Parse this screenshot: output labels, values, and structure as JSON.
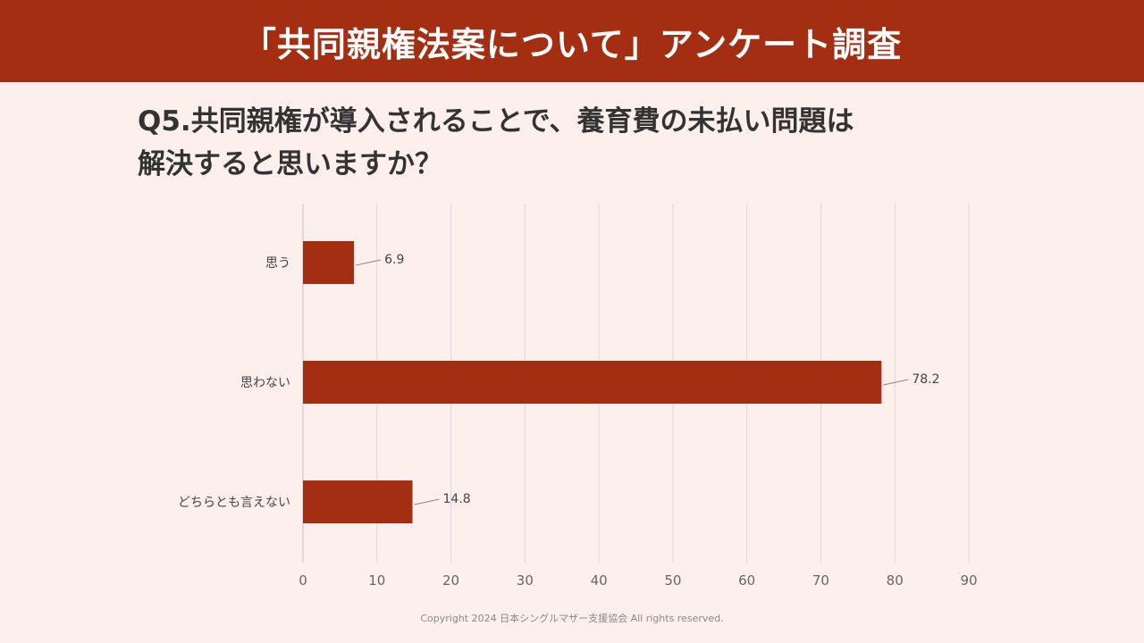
{
  "header": {
    "title": "「共同親権法案について」アンケート調査"
  },
  "question": {
    "line1": "Q5.共同親権が導入されることで、養育費の未払い問題は",
    "line2": "解決すると思いますか？"
  },
  "chart_data": {
    "type": "bar",
    "orientation": "horizontal",
    "categories": [
      "思う",
      "思わない",
      "どちらとも言えない"
    ],
    "values": [
      6.9,
      78.2,
      14.8
    ],
    "value_labels": [
      "6.9",
      "78.2",
      "14.8"
    ],
    "x_ticks": [
      "0",
      "10",
      "20",
      "30",
      "40",
      "50",
      "60",
      "70",
      "80",
      "90"
    ],
    "xlim": [
      0,
      90
    ],
    "grid": true,
    "bar_color": "#a32e12"
  },
  "footer": {
    "copyright": "Copyright 2024 日本シングルマザー支援協会 All rights reserved."
  }
}
